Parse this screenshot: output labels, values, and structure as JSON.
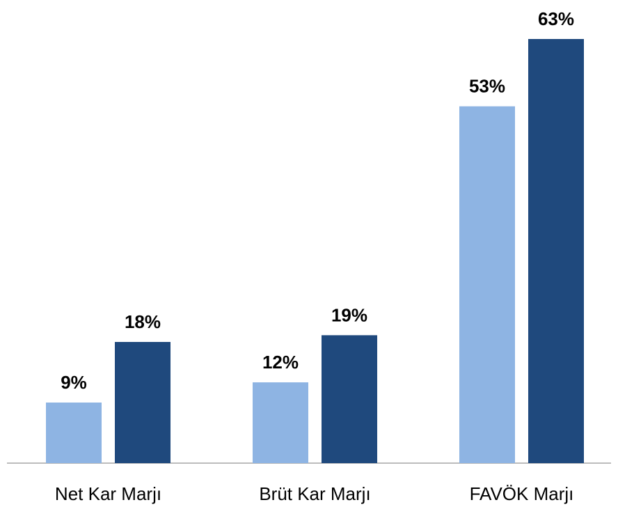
{
  "chart_data": {
    "type": "bar",
    "categories": [
      "Net Kar Marjı",
      "Brüt Kar Marjı",
      "FAVÖK Marjı"
    ],
    "series": [
      {
        "color": "#8eb4e3",
        "values": [
          9,
          12,
          53
        ],
        "value_labels": [
          "9%",
          "12%",
          "53%"
        ]
      },
      {
        "color": "#1f497d",
        "values": [
          18,
          19,
          63
        ],
        "value_labels": [
          "18%",
          "19%",
          "63%"
        ]
      }
    ]
  }
}
